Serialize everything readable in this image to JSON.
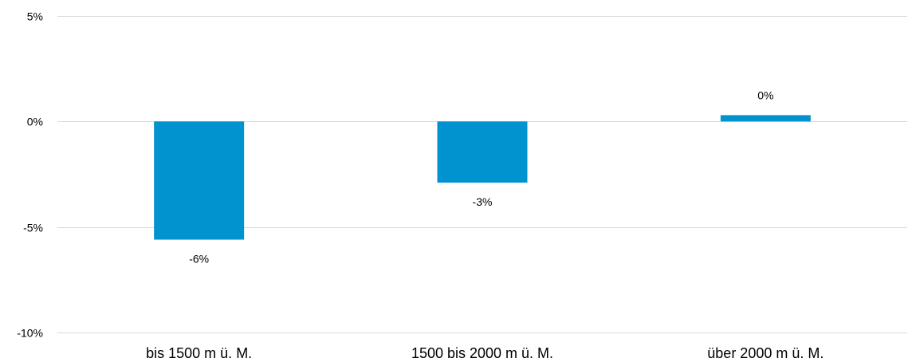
{
  "chart_data": {
    "type": "bar",
    "categories": [
      "bis 1500 m ü. M.",
      "1500 bis 2000 m ü. M.",
      "über 2000 m ü. M."
    ],
    "values": [
      -5.6,
      -2.9,
      0.3
    ],
    "data_labels": [
      "-6%",
      "-3%",
      "0%"
    ],
    "ylim": [
      -10,
      5
    ],
    "y_ticks": [
      5,
      0,
      -5,
      -10
    ],
    "y_tick_labels": [
      "5%",
      "0%",
      "-5%",
      "-10%"
    ],
    "grid": true,
    "legend": "none",
    "bar_color": "#0093d0"
  }
}
